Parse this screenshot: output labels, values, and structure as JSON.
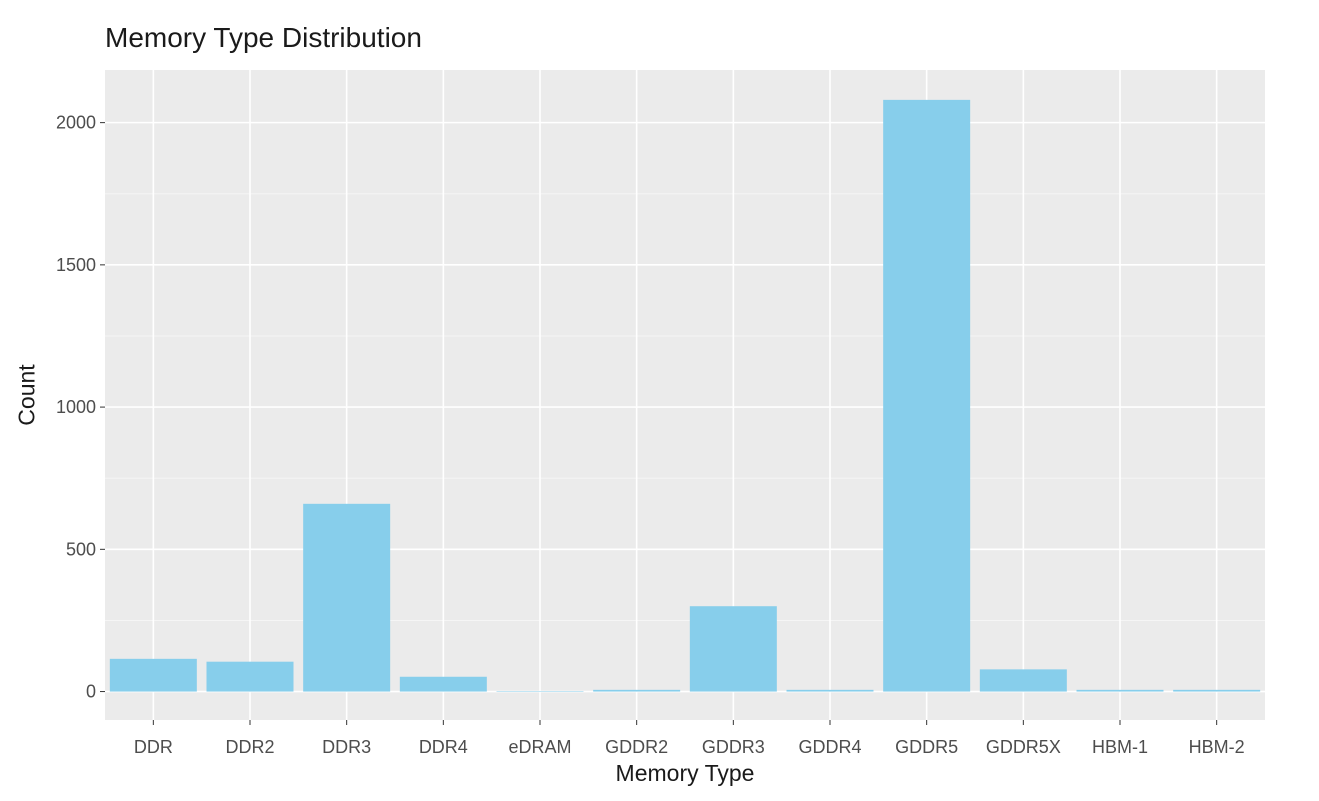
{
  "chart_data": {
    "type": "bar",
    "title": "Memory Type Distribution",
    "xlabel": "Memory Type",
    "ylabel": "Count",
    "categories": [
      "DDR",
      "DDR2",
      "DDR3",
      "DDR4",
      "eDRAM",
      "GDDR2",
      "GDDR3",
      "GDDR4",
      "GDDR5",
      "GDDR5X",
      "HBM-1",
      "HBM-2"
    ],
    "values": [
      115,
      105,
      660,
      52,
      1,
      6,
      300,
      6,
      2080,
      78,
      6,
      6
    ],
    "ylim": [
      -100,
      2185
    ],
    "yticks": [
      0,
      500,
      1000,
      1500,
      2000
    ],
    "grid": true,
    "background": "#ebebeb",
    "bar_color": "#87ceeb",
    "legend": "none"
  }
}
